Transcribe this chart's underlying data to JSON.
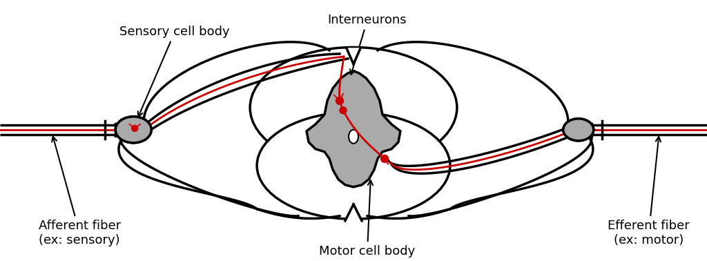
{
  "background_color": "#ffffff",
  "line_color": "#000000",
  "red_color": "#cc0000",
  "gray_color": "#aaaaaa",
  "labels": {
    "interneurons": "Interneurons",
    "sensory_cell_body": "Sensory cell body",
    "afferent_fiber": "Afferent fiber\n(ex: sensory)",
    "efferent_fiber": "Efferent fiber\n(ex: motor)",
    "motor_cell_body": "Motor cell body"
  },
  "figsize": [
    10.24,
    3.78
  ],
  "dpi": 100
}
